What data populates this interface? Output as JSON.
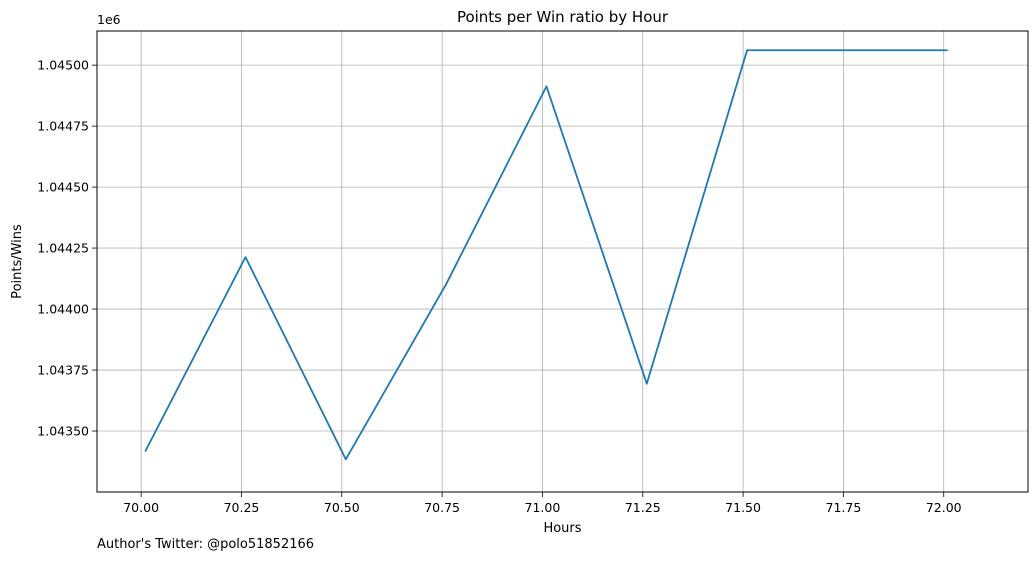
{
  "chart_data": {
    "type": "line",
    "title": "Points per Win ratio by Hour",
    "xlabel": "Hours",
    "ylabel": "Points/Wins",
    "y_offset_label": "1e6",
    "xlim": [
      69.89,
      72.21
    ],
    "ylim": [
      1.04325,
      1.04514
    ],
    "x_ticks": [
      70.0,
      70.25,
      70.5,
      70.75,
      71.0,
      71.25,
      71.5,
      71.75,
      72.0
    ],
    "x_tick_labels": [
      "70.00",
      "70.25",
      "70.50",
      "70.75",
      "71.00",
      "71.25",
      "71.50",
      "71.75",
      "72.00"
    ],
    "y_ticks": [
      1.0435,
      1.04375,
      1.044,
      1.04425,
      1.0445,
      1.04475,
      1.045
    ],
    "y_tick_labels": [
      "1.04350",
      "1.04375",
      "1.04400",
      "1.04425",
      "1.04450",
      "1.04475",
      "1.04500"
    ],
    "grid": true,
    "series": [
      {
        "name": "Points/Wins",
        "color": "#1f77b4",
        "x": [
          70.01,
          70.26,
          70.51,
          70.76,
          71.01,
          71.26,
          71.51,
          71.76,
          72.01
        ],
        "y": [
          1.043416,
          1.044213,
          1.043384,
          1.044102,
          1.044913,
          1.043694,
          1.045061,
          1.045061,
          1.045061
        ]
      }
    ]
  },
  "footer": {
    "text": "Author's Twitter: @polo51852166"
  }
}
